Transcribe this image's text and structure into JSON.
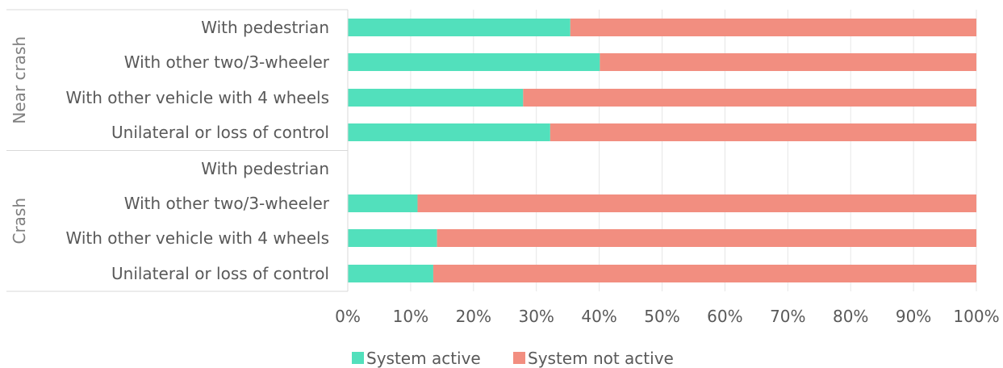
{
  "chart_data": {
    "type": "bar",
    "orientation": "horizontal",
    "stacked": "percent",
    "groups": [
      {
        "name": "Near crash",
        "categories": [
          "With pedestrian",
          "With other two/3-wheeler",
          "With other vehicle with 4 wheels",
          "Unilateral or loss of control"
        ]
      },
      {
        "name": "Crash",
        "categories": [
          "With pedestrian",
          "With other two/3-wheeler",
          "With other vehicle with 4 wheels",
          "Unilateral or loss of control"
        ]
      }
    ],
    "series": [
      {
        "name": "System active",
        "color": "#52e0bc",
        "values": [
          35.4,
          40.1,
          27.9,
          32.2,
          null,
          11.1,
          14.2,
          13.6
        ]
      },
      {
        "name": "System not active",
        "color": "#f28e80",
        "values": [
          64.6,
          59.9,
          72.1,
          67.8,
          null,
          88.9,
          85.8,
          86.4
        ]
      }
    ],
    "xlim": [
      0,
      100
    ],
    "xticks": [
      "0%",
      "10%",
      "20%",
      "30%",
      "40%",
      "50%",
      "60%",
      "70%",
      "80%",
      "90%",
      "100%"
    ],
    "grid": true,
    "legend": "bottom"
  }
}
